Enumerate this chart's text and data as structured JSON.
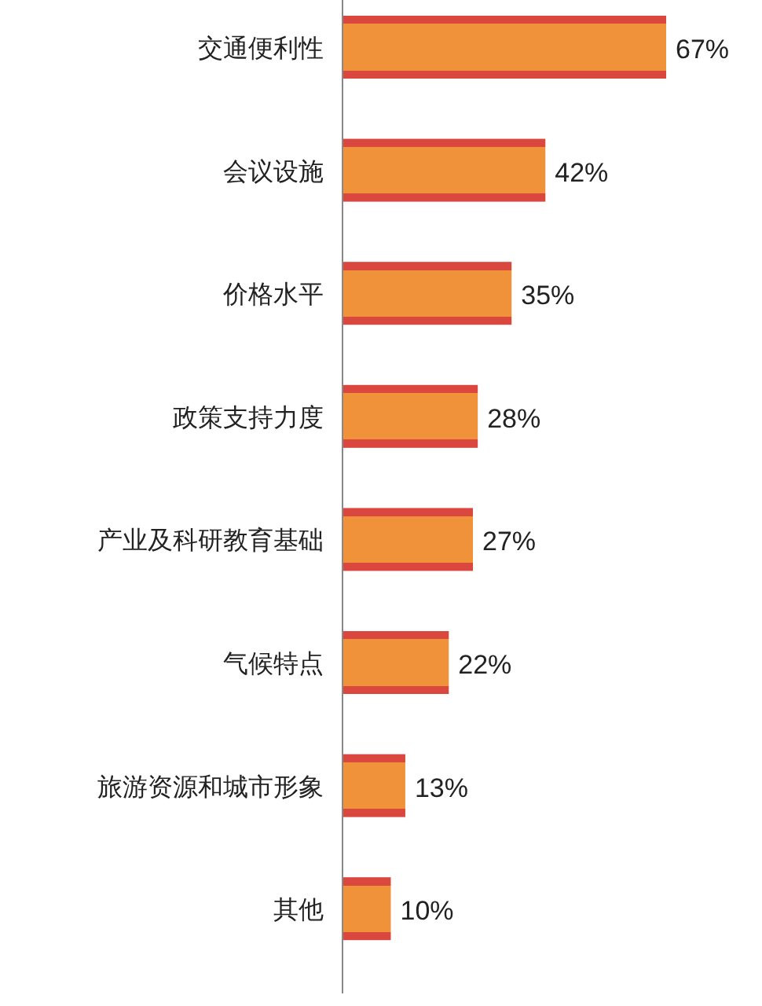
{
  "chart_data": {
    "type": "bar",
    "orientation": "horizontal",
    "categories": [
      "交通便利性",
      "会议设施",
      "价格水平",
      "政策支持力度",
      "产业及科研教育基础",
      "气候特点",
      "旅游资源和城市形象",
      "其他"
    ],
    "values": [
      67,
      42,
      35,
      28,
      27,
      22,
      13,
      10
    ],
    "color": "#f0923a",
    "value_labels": [
      "67%",
      "42%",
      "35%",
      "28%",
      "27%",
      "22%",
      "13%",
      "10%"
    ]
  }
}
